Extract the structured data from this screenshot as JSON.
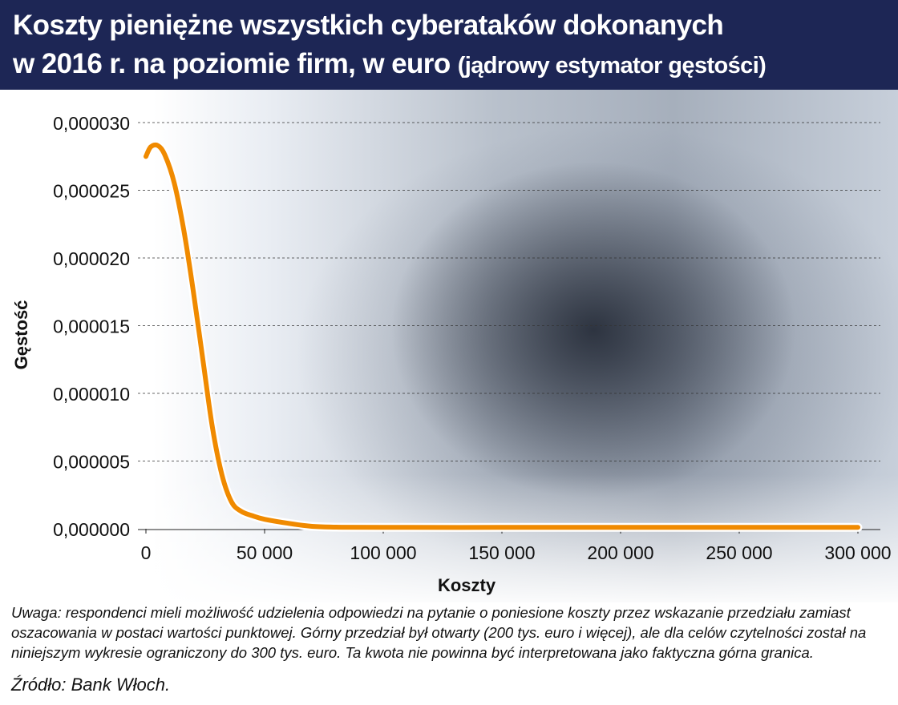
{
  "header": {
    "title_line1": "Koszty pieniężne wszystkich cyberataków dokonanych",
    "title_line2": "w 2016 r. na poziomie firm, w euro",
    "title_sub": "(jądrowy estymator gęstości)"
  },
  "chart_data": {
    "type": "line",
    "xlabel": "Koszty",
    "ylabel": "Gęstość",
    "xlim": [
      0,
      300000
    ],
    "ylim": [
      0,
      3e-05
    ],
    "x_ticks": [
      0,
      50000,
      100000,
      150000,
      200000,
      250000,
      300000
    ],
    "x_tick_labels": [
      "0",
      "50 000",
      "100 000",
      "150 000",
      "200 000",
      "250 000",
      "300 000"
    ],
    "y_ticks": [
      0,
      5e-06,
      1e-05,
      1.5e-05,
      2e-05,
      2.5e-05,
      3e-05
    ],
    "y_tick_labels": [
      "0,000000",
      "0,000005",
      "0,000010",
      "0,000015",
      "0,000020",
      "0,000025",
      "0,000030"
    ],
    "grid": "horizontal dashed",
    "series": [
      {
        "color": "#f08a00",
        "x": [
          0,
          2000,
          5000,
          8000,
          12000,
          16000,
          20000,
          24000,
          28000,
          32000,
          36000,
          40000,
          45000,
          50000,
          60000,
          70000,
          80000,
          100000,
          150000,
          200000,
          250000,
          300000
        ],
        "y": [
          2.75e-05,
          2.82e-05,
          2.83e-05,
          2.76e-05,
          2.55e-05,
          2.2e-05,
          1.75e-05,
          1.25e-05,
          7.5e-06,
          4e-06,
          2e-06,
          1.3e-06,
          9.5e-07,
          7e-07,
          4e-07,
          1.8e-07,
          1.2e-07,
          1e-07,
          1e-07,
          1e-07,
          1e-07,
          1e-07
        ]
      }
    ]
  },
  "footer": {
    "note": "Uwaga: respondenci mieli możliwość udzielenia odpowiedzi na pytanie o poniesione koszty przez wskazanie przedziału zamiast oszacowania w postaci wartości punktowej. Górny przedział był otwarty (200 tys. euro i więcej), ale dla celów czytelności został na niniejszym wykresie ograniczony do 300 tys. euro. Ta kwota nie powinna być interpretowana jako faktyczna górna granica.",
    "source": "Źródło: Bank Włoch."
  }
}
